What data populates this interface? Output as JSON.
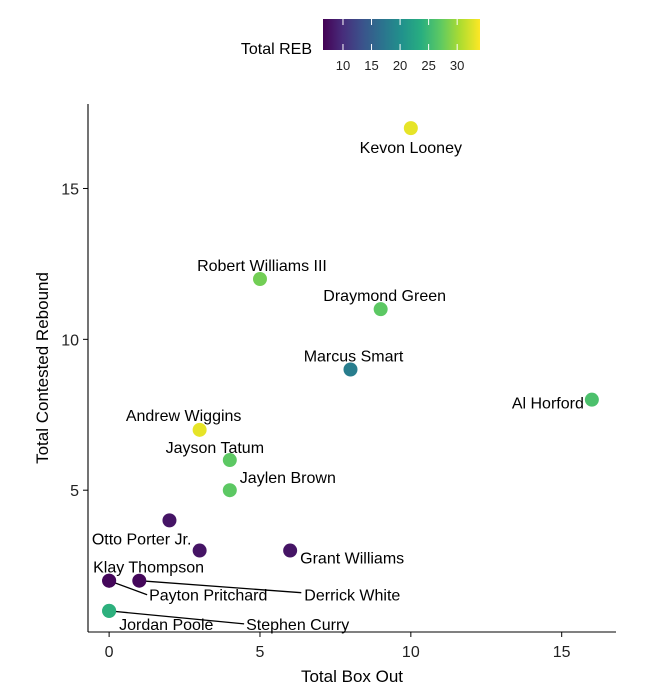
{
  "chart_data": {
    "type": "scatter",
    "title": "",
    "xlabel": "Total Box Out",
    "ylabel": "Total Contested Rebound",
    "xlim": [
      -0.7,
      16.8
    ],
    "ylim": [
      0.3,
      17.8
    ],
    "xticks": [
      0,
      5,
      10,
      15
    ],
    "yticks": [
      5,
      10,
      15
    ],
    "grid": false,
    "color_variable": "Total REB",
    "colorbar": {
      "min": 6.5,
      "max": 34,
      "ticks": [
        10,
        15,
        20,
        25,
        30
      ],
      "placement": "top"
    },
    "points": [
      {
        "name": "Kevon Looney",
        "x": 10,
        "y": 17,
        "reb": 33
      },
      {
        "name": "Robert Williams III",
        "x": 5,
        "y": 12,
        "reb": 28
      },
      {
        "name": "Draymond Green",
        "x": 9,
        "y": 11,
        "reb": 27
      },
      {
        "name": "Marcus Smart",
        "x": 8,
        "y": 9,
        "reb": 18
      },
      {
        "name": "Al Horford",
        "x": 16,
        "y": 8,
        "reb": 26
      },
      {
        "name": "Andrew Wiggins",
        "x": 3,
        "y": 7,
        "reb": 33
      },
      {
        "name": "Jayson Tatum",
        "x": 4,
        "y": 6,
        "reb": 27
      },
      {
        "name": "Jaylen Brown",
        "x": 4,
        "y": 5,
        "reb": 27
      },
      {
        "name": "",
        "x": 2,
        "y": 4,
        "reb": 8
      },
      {
        "name": "Otto Porter Jr.",
        "x": 3,
        "y": 3,
        "reb": 8
      },
      {
        "name": "Grant Williams",
        "x": 6,
        "y": 3,
        "reb": 8
      },
      {
        "name": "Klay Thompson",
        "x": 0,
        "y": 2,
        "reb": 8
      },
      {
        "name": "Payton Pritchard",
        "x": 0,
        "y": 2,
        "reb": 7
      },
      {
        "name": "Derrick White",
        "x": 1,
        "y": 2,
        "reb": 7
      },
      {
        "name": "Jordan Poole",
        "x": 0,
        "y": 1,
        "reb": 24
      },
      {
        "name": "Stephen Curry",
        "x": 0,
        "y": 1,
        "reb": 24
      }
    ]
  }
}
